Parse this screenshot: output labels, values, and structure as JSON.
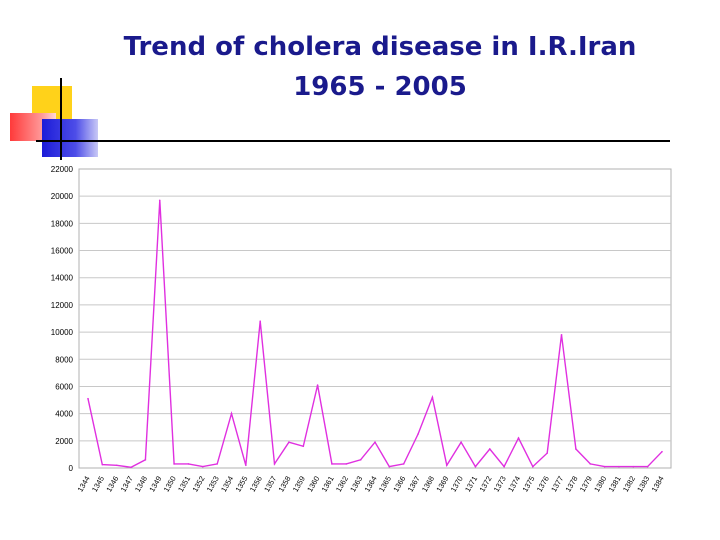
{
  "slide": {
    "title_line1": "Trend of cholera disease in I.R.Iran",
    "title_line2": "1965 - 2005"
  },
  "colors": {
    "title": "#1a1a8c",
    "series": "#e030e0",
    "grid": "#c8c8c8",
    "deco_yellow": "#ffd21a",
    "deco_red": "#ff3a3a",
    "deco_blue": "#1c1cd8"
  },
  "chart_data": {
    "type": "line",
    "title": "",
    "xlabel": "",
    "ylabel": "",
    "ylim": [
      0,
      22000
    ],
    "yticks": [
      0,
      2000,
      4000,
      6000,
      8000,
      10000,
      12000,
      14000,
      16000,
      18000,
      20000,
      22000
    ],
    "grid": true,
    "legend": "none",
    "x": [
      "1344",
      "1345",
      "1346",
      "1347",
      "1348",
      "1349",
      "1350",
      "1351",
      "1352",
      "1353",
      "1354",
      "1355",
      "1356",
      "1357",
      "1358",
      "1359",
      "1360",
      "1361",
      "1362",
      "1363",
      "1364",
      "1365",
      "1366",
      "1367",
      "1368",
      "1369",
      "1370",
      "1371",
      "1372",
      "1373",
      "1374",
      "1375",
      "1376",
      "1377",
      "1378",
      "1379",
      "1380",
      "1381",
      "1382",
      "1383",
      "1384"
    ],
    "series": [
      {
        "values": [
          5100,
          250,
          200,
          50,
          600,
          19700,
          300,
          300,
          100,
          300,
          4000,
          200,
          10800,
          300,
          1900,
          1600,
          6100,
          300,
          300,
          600,
          1900,
          100,
          300,
          2500,
          5200,
          200,
          1900,
          100,
          1400,
          100,
          2200,
          100,
          1100,
          9800,
          1400,
          300,
          100,
          100,
          100,
          100,
          1200
        ]
      }
    ]
  }
}
